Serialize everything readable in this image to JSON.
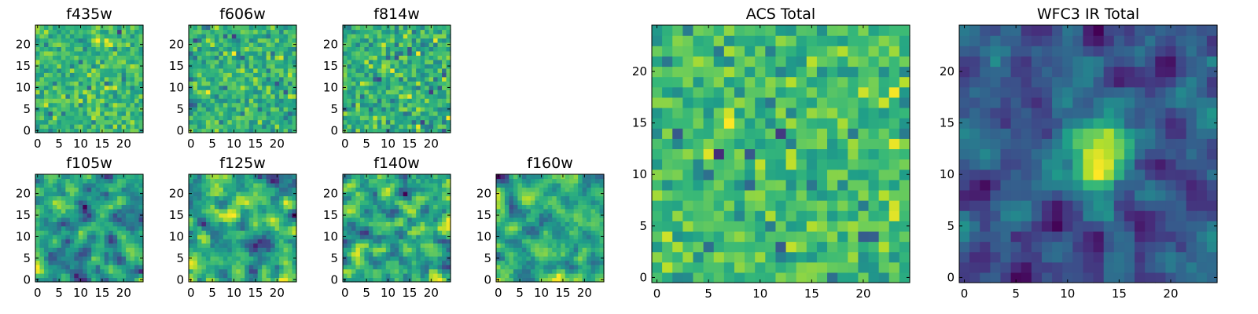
{
  "chart_data": [
    {
      "type": "heatmap",
      "title": "f435w",
      "xticks": [
        0,
        5,
        10,
        15,
        20
      ],
      "yticks": [
        0,
        5,
        10,
        15,
        20
      ],
      "grid_size": 25,
      "colormap": "viridis",
      "pattern": "noise",
      "seed": 11
    },
    {
      "type": "heatmap",
      "title": "f606w",
      "xticks": [
        0,
        5,
        10,
        15,
        20
      ],
      "yticks": [
        0,
        5,
        10,
        15,
        20
      ],
      "grid_size": 25,
      "colormap": "viridis",
      "pattern": "noise",
      "seed": 23
    },
    {
      "type": "heatmap",
      "title": "f814w",
      "xticks": [
        0,
        5,
        10,
        15,
        20
      ],
      "yticks": [
        0,
        5,
        10,
        15,
        20
      ],
      "grid_size": 25,
      "colormap": "viridis",
      "pattern": "noise",
      "seed": 37
    },
    {
      "type": "heatmap",
      "title": "f105w",
      "xticks": [
        0,
        5,
        10,
        15,
        20
      ],
      "yticks": [
        0,
        5,
        10,
        15,
        20
      ],
      "grid_size": 25,
      "colormap": "viridis",
      "pattern": "smooth",
      "seed": 41
    },
    {
      "type": "heatmap",
      "title": "f125w",
      "xticks": [
        0,
        5,
        10,
        15,
        20
      ],
      "yticks": [
        0,
        5,
        10,
        15,
        20
      ],
      "grid_size": 25,
      "colormap": "viridis",
      "pattern": "smooth",
      "seed": 53
    },
    {
      "type": "heatmap",
      "title": "f140w",
      "xticks": [
        0,
        5,
        10,
        15,
        20
      ],
      "yticks": [
        0,
        5,
        10,
        15,
        20
      ],
      "grid_size": 25,
      "colormap": "viridis",
      "pattern": "smooth",
      "seed": 67
    },
    {
      "type": "heatmap",
      "title": "f160w",
      "xticks": [
        0,
        5,
        10,
        15,
        20
      ],
      "yticks": [
        0,
        5,
        10,
        15,
        20
      ],
      "grid_size": 25,
      "colormap": "viridis",
      "pattern": "smooth",
      "seed": 79
    },
    {
      "type": "heatmap",
      "title": "ACS Total",
      "xticks": [
        0,
        5,
        10,
        15,
        20
      ],
      "yticks": [
        0,
        5,
        10,
        15,
        20
      ],
      "grid_size": 25,
      "colormap": "viridis",
      "pattern": "noise_bright",
      "seed": 97
    },
    {
      "type": "heatmap",
      "title": "WFC3 IR Total",
      "xticks": [
        0,
        5,
        10,
        15,
        20
      ],
      "yticks": [
        0,
        5,
        10,
        15,
        20
      ],
      "grid_size": 25,
      "colormap": "viridis",
      "pattern": "source",
      "seed": 113,
      "peak_center": [
        12.5,
        12
      ]
    }
  ]
}
